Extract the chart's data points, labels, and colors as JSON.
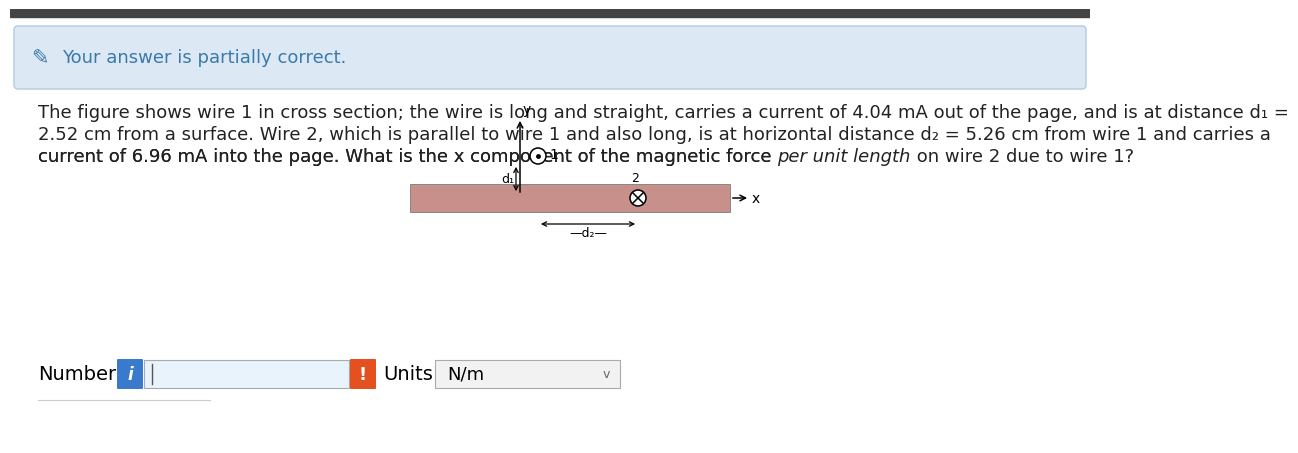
{
  "bg_color": "#ffffff",
  "banner_color": "#dce9f5",
  "banner_border_color": "#b0cce0",
  "banner_text": "Your answer is partially correct.",
  "banner_text_color": "#3a7aaa",
  "body_text_color": "#222222",
  "body_fontsize": 13.0,
  "number_label": "Number",
  "units_label": "Units",
  "units_value": "N/m",
  "input_bg": "#e8f3fc",
  "exclamation_color": "#e55020",
  "info_icon_color": "#3a7acc",
  "surface_color": "#c8908a",
  "surface_edge_color": "#888888",
  "top_bar_color": "#444444",
  "line1": "The figure shows wire 1 in cross section; the wire is long and straight, carries a current of 4.04 mA out of the page, and is at distance d₁ =",
  "line2": "2.52 cm from a surface. Wire 2, which is parallel to wire 1 and also long, is at horizontal distance d₂ = 5.26 cm from wire 1 and carries a",
  "line3a": "current of 6.96 mA into the page. What is the x component of the magnetic force ",
  "line3b": "per unit length",
  "line3c": " on wire 2 due to wire 1?"
}
